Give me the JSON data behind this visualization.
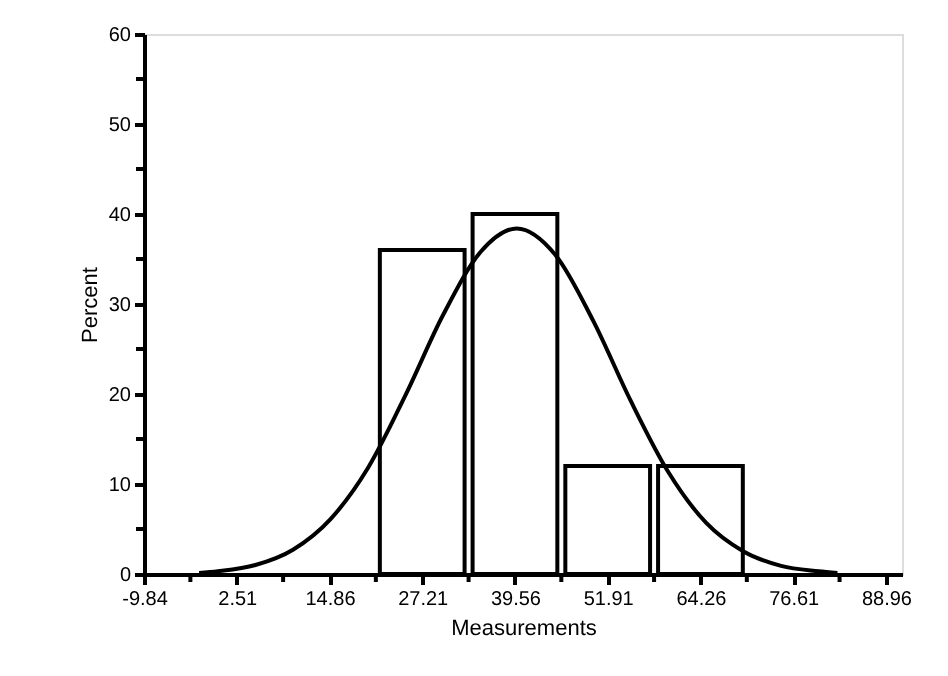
{
  "chart_data": {
    "type": "histogram",
    "xlabel": "Measurements",
    "ylabel": "Percent",
    "bins": [
      21.035,
      33.385,
      45.735,
      58.085,
      70.435
    ],
    "values": [
      36,
      40,
      12,
      12
    ],
    "color": "#ffffff",
    "series": [
      {
        "type": "line",
        "color": "#000000",
        "x": [
          -2.5,
          0,
          5,
          10,
          15,
          20,
          25,
          30,
          35,
          39.8,
          45,
          50,
          55,
          60,
          65,
          70,
          75,
          80,
          82.5
        ],
        "values": [
          0.1,
          0.3,
          1.0,
          2.7,
          6.1,
          11.8,
          19.9,
          28.8,
          35.8,
          38.4,
          35.4,
          28.1,
          19.2,
          11.3,
          5.7,
          2.5,
          0.9,
          0.3,
          0.1
        ]
      }
    ],
    "xlim": [
      -9.84,
      91.1
    ],
    "ylim": [
      0,
      60
    ],
    "xticks": [
      -9.84,
      {
        "value": -3.665,
        "label": null
      },
      2.51,
      {
        "value": 8.685,
        "label": null
      },
      14.86,
      {
        "value": 21.035,
        "label": null
      },
      27.21,
      {
        "value": 33.385,
        "label": null
      },
      39.56,
      {
        "value": 45.735,
        "label": null
      },
      51.91,
      {
        "value": 58.085,
        "label": null
      },
      64.26,
      {
        "value": 70.435,
        "label": null
      },
      76.61,
      {
        "value": 82.785,
        "label": null
      },
      88.96
    ],
    "yticks": [
      0,
      {
        "value": 5,
        "label": null
      },
      10,
      {
        "value": 15,
        "label": null
      },
      20,
      {
        "value": 25,
        "label": null
      },
      30,
      {
        "value": 35,
        "label": null
      },
      40,
      {
        "value": 45,
        "label": null
      },
      50,
      {
        "value": 55,
        "label": null
      },
      60
    ],
    "grid": false
  }
}
